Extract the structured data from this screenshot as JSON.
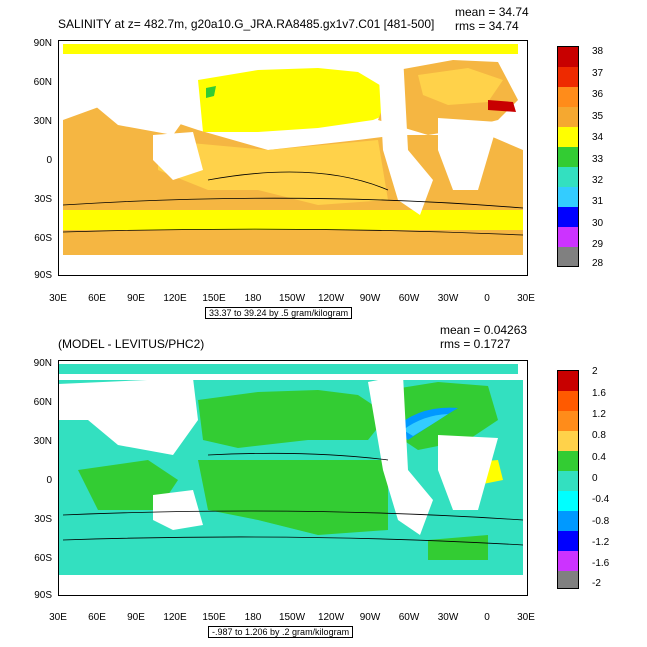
{
  "colors": {
    "ocean_land": "#ffffff",
    "sal_33_34": "#33cc33",
    "sal_34_35": "#ffff00",
    "sal_35_36": "#f5b642",
    "diff_0_04": "#33cc33",
    "diff_m04_0": "#33e0c0"
  },
  "panel1": {
    "title": "SALINITY at z= 482.7m, g20a10.G_JRA.RA8485.gx1v7.C01 [481-500]",
    "mean": "mean = 34.74",
    "rms": "rms = 34.74",
    "subtitle": "33.37 to 39.24 by .5 gram/kilogram",
    "lat_labels": [
      "90N",
      "60N",
      "30N",
      "0",
      "30S",
      "60S",
      "90S"
    ],
    "lon_labels": [
      "30E",
      "60E",
      "90E",
      "120E",
      "150E",
      "180",
      "150W",
      "120W",
      "90W",
      "60W",
      "30W",
      "0",
      "30E"
    ],
    "colorbar": {
      "labels": [
        "38",
        "37",
        "36",
        "35",
        "34",
        "33",
        "32",
        "31",
        "30",
        "29",
        "28"
      ],
      "colors": [
        "#c80000",
        "#ee2a00",
        "#ff5a00",
        "#ff8c1a",
        "#f5a830",
        "#ffd24a",
        "#ffff00",
        "#33cc33",
        "#00e08a",
        "#33e0c0",
        "#00ffff",
        "#33ccff",
        "#0099ff",
        "#0055ff",
        "#0000ff",
        "#6600cc",
        "#cc33ff",
        "#e6e6e6",
        "#808080"
      ]
    }
  },
  "panel2": {
    "title": "(MODEL - LEVITUS/PHC2)",
    "mean": "mean = 0.04263",
    "rms": "rms = 0.1727",
    "subtitle": "-.987 to 1.206 by .2 gram/kilogram",
    "lat_labels": [
      "90N",
      "60N",
      "30N",
      "0",
      "30S",
      "60S",
      "90S"
    ],
    "lon_labels": [
      "30E",
      "60E",
      "90E",
      "120E",
      "150E",
      "180",
      "150W",
      "120W",
      "90W",
      "60W",
      "30W",
      "0",
      "30E"
    ],
    "colorbar": {
      "labels": [
        "2",
        "1.6",
        "1.2",
        "0.8",
        "0.4",
        "0",
        "-0.4",
        "-0.8",
        "-1.2",
        "-1.6",
        "-2"
      ],
      "colors": [
        "#c80000",
        "#ee2a00",
        "#ff5a00",
        "#ff8c1a",
        "#f5a830",
        "#ffd24a",
        "#ffff00",
        "#33cc33",
        "#00e08a",
        "#33e0c0",
        "#00ffff",
        "#33ccff",
        "#0099ff",
        "#0055ff",
        "#0000ff",
        "#6600cc",
        "#cc33ff",
        "#e6e6e6",
        "#808080"
      ]
    }
  }
}
